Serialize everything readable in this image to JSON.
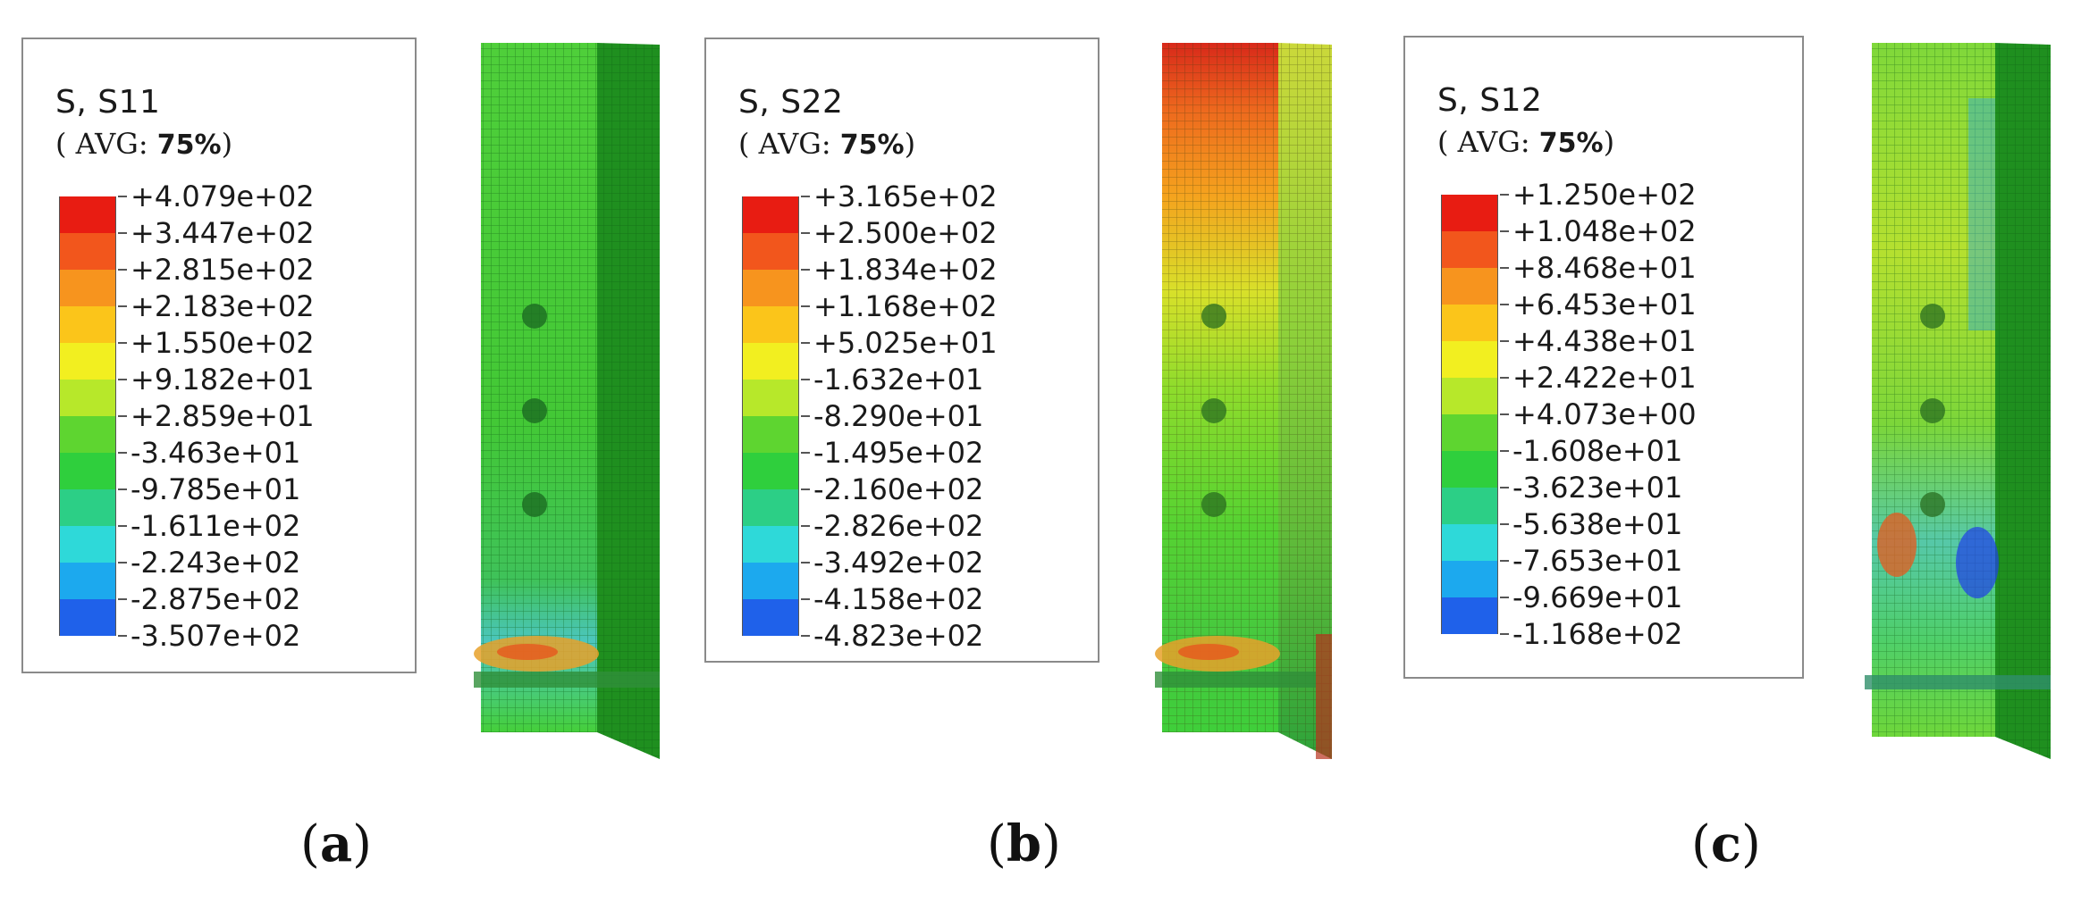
{
  "panels": [
    {
      "id": "a",
      "variable": "S, S11",
      "averaging": "( AVG: 75%)",
      "averaging_prefix": "( AVG: ",
      "averaging_value": "75%",
      "averaging_suffix": ")",
      "values": [
        "+4.079e+02",
        "+3.447e+02",
        "+2.815e+02",
        "+2.183e+02",
        "+1.550e+02",
        "+9.182e+01",
        "+2.859e+01",
        "-3.463e+01",
        "-9.785e+01",
        "-1.611e+02",
        "-2.243e+02",
        "-2.875e+02",
        "-3.507e+02"
      ],
      "caption": "a"
    },
    {
      "id": "b",
      "variable": "S, S22",
      "averaging": "( AVG: 75%)",
      "averaging_prefix": "( AVG: ",
      "averaging_value": "75%",
      "averaging_suffix": ")",
      "values": [
        "+3.165e+02",
        "+2.500e+02",
        "+1.834e+02",
        "+1.168e+02",
        "+5.025e+01",
        "-1.632e+01",
        "-8.290e+01",
        "-1.495e+02",
        "-2.160e+02",
        "-2.826e+02",
        "-3.492e+02",
        "-4.158e+02",
        "-4.823e+02"
      ],
      "caption": "b"
    },
    {
      "id": "c",
      "variable": "S, S12",
      "averaging": "( AVG: 75%)",
      "averaging_prefix": "( AVG: ",
      "averaging_value": "75%",
      "averaging_suffix": ")",
      "values": [
        "+1.250e+02",
        "+1.048e+02",
        "+8.468e+01",
        "+6.453e+01",
        "+4.438e+01",
        "+2.422e+01",
        "+4.073e+00",
        "-1.608e+01",
        "-3.623e+01",
        "-5.638e+01",
        "-7.653e+01",
        "-9.669e+01",
        "-1.168e+02"
      ],
      "caption": "c"
    }
  ],
  "colormap": [
    "#e81c12",
    "#f2561c",
    "#f7941e",
    "#fbc51a",
    "#f2ef20",
    "#b7e82a",
    "#5ed530",
    "#2fcf3d",
    "#2ccf86",
    "#2ed9d9",
    "#1ca9ee",
    "#1f61ea",
    "#1c19f0"
  ]
}
